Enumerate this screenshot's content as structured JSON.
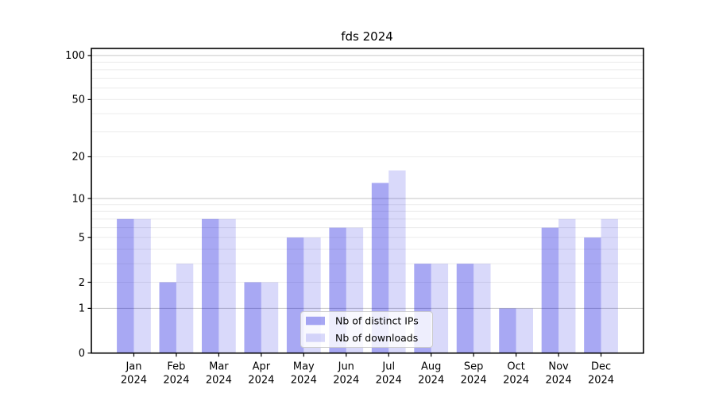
{
  "chart_data": {
    "type": "bar",
    "title": "fds 2024",
    "categories": [
      "Jan",
      "Feb",
      "Mar",
      "Apr",
      "May",
      "Jun",
      "Jul",
      "Aug",
      "Sep",
      "Oct",
      "Nov",
      "Dec"
    ],
    "x_year_label": "2024",
    "series": [
      {
        "name": "Nb of distinct IPs",
        "color": "#0000dd",
        "fill_opacity": 0.34,
        "values": [
          7,
          2,
          7,
          2,
          5,
          6,
          13,
          3,
          3,
          1,
          6,
          5
        ]
      },
      {
        "name": "Nb of downloads",
        "color": "#0000dd",
        "fill_opacity": 0.15,
        "values": [
          7,
          3,
          7,
          2,
          5,
          6,
          16,
          3,
          3,
          1,
          7,
          7
        ]
      }
    ],
    "y_axis": {
      "scale": "log1p",
      "ticks": [
        0,
        1,
        2,
        5,
        10,
        20,
        50,
        100
      ],
      "decade_ticks": [
        1,
        10,
        100
      ],
      "minor_gridlines": [
        3,
        4,
        6,
        7,
        8,
        9,
        30,
        40,
        60,
        70,
        80,
        90
      ],
      "ylim": [
        0,
        112
      ]
    },
    "legend": {
      "position": "lower center"
    },
    "grid": true,
    "colors": {
      "major_grid": "#c6c6c6",
      "minor_grid": "#ececec",
      "spine": "#000000",
      "legend_border": "#cccccc",
      "legend_bg": "#ffffff"
    }
  }
}
